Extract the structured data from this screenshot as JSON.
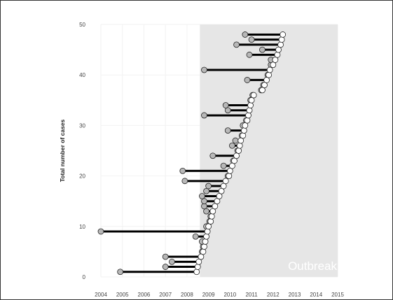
{
  "chart_data": {
    "type": "scatter",
    "subtype": "dumbbell",
    "title": "",
    "xlabel": "",
    "ylabel": "Total number of cases",
    "xlim": [
      2004,
      2015
    ],
    "ylim": [
      0,
      50
    ],
    "xticks": [
      2004,
      2005,
      2006,
      2007,
      2008,
      2009,
      2010,
      2011,
      2012,
      2013,
      2014,
      2015
    ],
    "yticks": [
      0,
      10,
      20,
      30,
      40,
      50
    ],
    "grid": true,
    "shaded_region": {
      "label": "Outbreak",
      "x_start": 2008.6,
      "x_end": 2015,
      "color": "#e6e6e6"
    },
    "series": [
      {
        "name": "",
        "color": "#b8b8b8"
      },
      {
        "name": "",
        "color": "#ffffff"
      }
    ],
    "cases": [
      {
        "y": 1,
        "start": 2004.9,
        "end": 2008.45
      },
      {
        "y": 2,
        "start": 2007.0,
        "end": 2008.5
      },
      {
        "y": 3,
        "start": 2007.3,
        "end": 2008.55
      },
      {
        "y": 4,
        "start": 2007.0,
        "end": 2008.65
      },
      {
        "y": 5,
        "start": 2008.7,
        "end": 2008.75
      },
      {
        "y": 6,
        "start": 2008.75,
        "end": 2008.8
      },
      {
        "y": 7,
        "start": 2008.7,
        "end": 2008.85
      },
      {
        "y": 8,
        "start": 2008.4,
        "end": 2008.9
      },
      {
        "y": 9,
        "start": 2004.0,
        "end": 2008.95
      },
      {
        "y": 10,
        "start": 2008.9,
        "end": 2009.0
      },
      {
        "y": 11,
        "start": 2009.05,
        "end": 2009.1
      },
      {
        "y": 12,
        "start": 2009.1,
        "end": 2009.15
      },
      {
        "y": 13,
        "start": 2008.9,
        "end": 2009.2
      },
      {
        "y": 14,
        "start": 2008.8,
        "end": 2009.3
      },
      {
        "y": 15,
        "start": 2008.8,
        "end": 2009.4
      },
      {
        "y": 16,
        "start": 2008.7,
        "end": 2009.5
      },
      {
        "y": 17,
        "start": 2008.9,
        "end": 2009.6
      },
      {
        "y": 18,
        "start": 2009.0,
        "end": 2009.7
      },
      {
        "y": 19,
        "start": 2007.9,
        "end": 2009.8
      },
      {
        "y": 20,
        "start": 2009.9,
        "end": 2009.95
      },
      {
        "y": 21,
        "start": 2007.8,
        "end": 2010.0
      },
      {
        "y": 22,
        "start": 2009.7,
        "end": 2010.1
      },
      {
        "y": 23,
        "start": 2010.15,
        "end": 2010.2
      },
      {
        "y": 24,
        "start": 2009.2,
        "end": 2010.3
      },
      {
        "y": 25,
        "start": 2010.35,
        "end": 2010.4
      },
      {
        "y": 26,
        "start": 2010.1,
        "end": 2010.45
      },
      {
        "y": 27,
        "start": 2010.25,
        "end": 2010.5
      },
      {
        "y": 28,
        "start": 2010.55,
        "end": 2010.6
      },
      {
        "y": 29,
        "start": 2009.9,
        "end": 2010.65
      },
      {
        "y": 30,
        "start": 2010.6,
        "end": 2010.7
      },
      {
        "y": 31,
        "start": 2010.75,
        "end": 2010.8
      },
      {
        "y": 32,
        "start": 2008.8,
        "end": 2010.85
      },
      {
        "y": 33,
        "start": 2009.9,
        "end": 2010.9
      },
      {
        "y": 34,
        "start": 2009.8,
        "end": 2010.95
      },
      {
        "y": 35,
        "start": 2010.95,
        "end": 2011.0
      },
      {
        "y": 36,
        "start": 2011.05,
        "end": 2011.1
      },
      {
        "y": 37,
        "start": 2011.45,
        "end": 2011.5
      },
      {
        "y": 38,
        "start": 2011.55,
        "end": 2011.6
      },
      {
        "y": 39,
        "start": 2010.8,
        "end": 2011.7
      },
      {
        "y": 40,
        "start": 2011.75,
        "end": 2011.8
      },
      {
        "y": 41,
        "start": 2008.8,
        "end": 2011.85
      },
      {
        "y": 42,
        "start": 2011.9,
        "end": 2012.0
      },
      {
        "y": 43,
        "start": 2011.9,
        "end": 2012.1
      },
      {
        "y": 44,
        "start": 2010.9,
        "end": 2012.2
      },
      {
        "y": 45,
        "start": 2011.5,
        "end": 2012.25
      },
      {
        "y": 46,
        "start": 2010.3,
        "end": 2012.35
      },
      {
        "y": 47,
        "start": 2011.0,
        "end": 2012.4
      },
      {
        "y": 48,
        "start": 2010.7,
        "end": 2012.45
      }
    ]
  }
}
